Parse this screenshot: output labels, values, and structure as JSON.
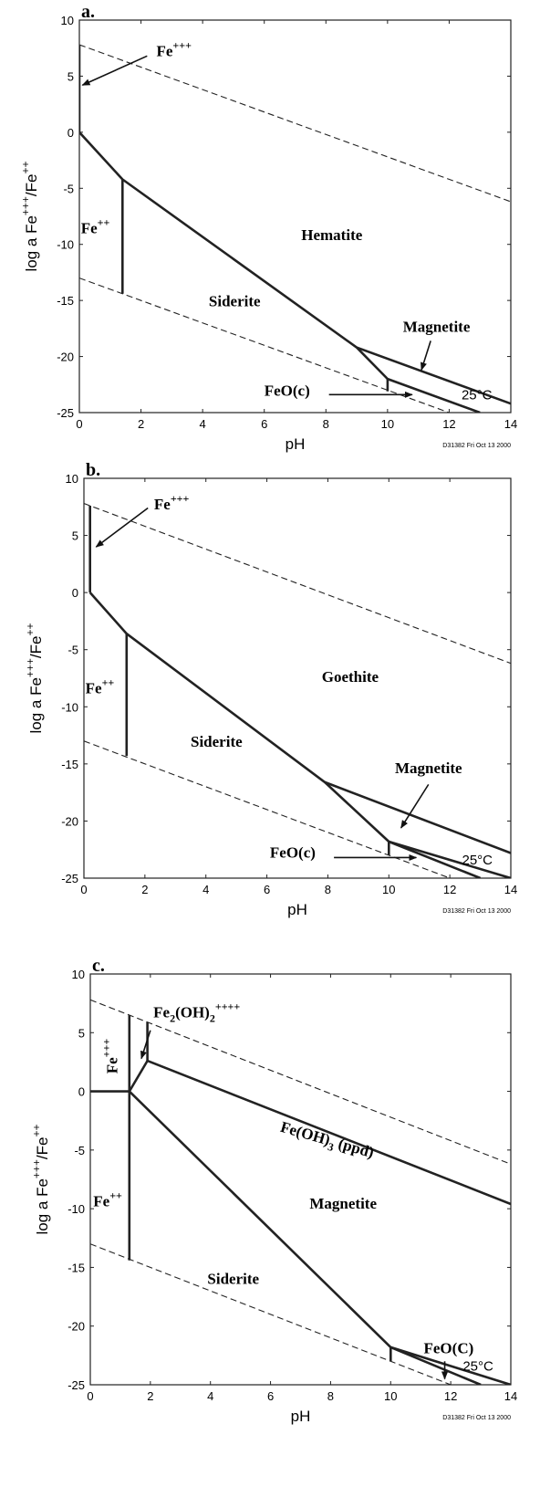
{
  "chart_data": [
    {
      "type": "line",
      "panel_label": "a.",
      "xlabel": "pH",
      "ylabel": "log a Fe+++/Fe++",
      "xlim": [
        0,
        14
      ],
      "ylim": [
        -25,
        10
      ],
      "xticks": [
        "0",
        "2",
        "4",
        "6",
        "8",
        "10",
        "12",
        "14"
      ],
      "yticks": [
        "10",
        "5",
        "0",
        "-5",
        "-10",
        "-15",
        "-20",
        "-25"
      ],
      "footer": "D31382 Fri Oct 13 2000",
      "temperature": "25°C",
      "series": [
        {
          "style": "dashed",
          "x": [
            0,
            14
          ],
          "y": [
            7.8,
            -6.2
          ]
        },
        {
          "style": "dashed",
          "x": [
            0,
            14
          ],
          "y": [
            -13,
            -27
          ]
        },
        {
          "style": "solid",
          "x": [
            0,
            0
          ],
          "y": [
            0,
            7.8
          ]
        },
        {
          "style": "solid",
          "x": [
            0,
            1.4,
            9,
            10,
            13
          ],
          "y": [
            0,
            -4.2,
            -19.2,
            -22,
            -25
          ]
        },
        {
          "style": "solid",
          "x": [
            1.4,
            1.4
          ],
          "y": [
            -4.2,
            -14.4
          ]
        },
        {
          "style": "solid",
          "x": [
            9,
            14
          ],
          "y": [
            -19.2,
            -24.2
          ]
        },
        {
          "style": "solid",
          "x": [
            10,
            10
          ],
          "y": [
            -22,
            -23.1
          ]
        }
      ],
      "labels": [
        {
          "base": "Fe",
          "sup": "+++",
          "x": 2.5,
          "y": 6.8
        },
        {
          "base": "Fe",
          "sup": "++",
          "x": 0.05,
          "y": -9
        },
        {
          "text": "Hematite",
          "x": 7.2,
          "y": -9.6
        },
        {
          "text": "Siderite",
          "x": 4.2,
          "y": -15.5
        },
        {
          "text": "Magnetite",
          "x": 10.5,
          "y": -17.8
        },
        {
          "text": "FeO(c)",
          "x": 6.0,
          "y": -23.5
        }
      ],
      "arrows": [
        {
          "x1": 2.2,
          "y1": 6.8,
          "x2": 0.1,
          "y2": 4.2
        },
        {
          "x1": 11.4,
          "y1": -18.6,
          "x2": 11.1,
          "y2": -21.2
        },
        {
          "x1": 8.1,
          "y1": -23.4,
          "x2": 10.8,
          "y2": -23.4
        }
      ]
    },
    {
      "type": "line",
      "panel_label": "b.",
      "xlabel": "pH",
      "ylabel": "log a Fe+++/Fe++",
      "xlim": [
        0,
        14
      ],
      "ylim": [
        -25,
        10
      ],
      "xticks": [
        "0",
        "2",
        "4",
        "6",
        "8",
        "10",
        "12",
        "14"
      ],
      "yticks": [
        "10",
        "5",
        "0",
        "-5",
        "-10",
        "-15",
        "-20",
        "-25"
      ],
      "footer": "D31382 Fri Oct 13 2000",
      "temperature": "25°C",
      "series": [
        {
          "style": "dashed",
          "x": [
            0,
            14
          ],
          "y": [
            7.8,
            -6.2
          ]
        },
        {
          "style": "dashed",
          "x": [
            0,
            14
          ],
          "y": [
            -13,
            -27
          ]
        },
        {
          "style": "solid",
          "x": [
            0.2,
            0.2
          ],
          "y": [
            0,
            7.6
          ]
        },
        {
          "style": "solid",
          "x": [
            0.2,
            1.4,
            7.9,
            10,
            13
          ],
          "y": [
            0,
            -3.6,
            -16.6,
            -21.8,
            -25
          ]
        },
        {
          "style": "solid",
          "x": [
            1.4,
            1.4
          ],
          "y": [
            -3.6,
            -14.3
          ]
        },
        {
          "style": "solid",
          "x": [
            7.9,
            14
          ],
          "y": [
            -16.6,
            -22.8
          ]
        },
        {
          "style": "solid",
          "x": [
            10,
            14
          ],
          "y": [
            -21.8,
            -25
          ]
        },
        {
          "style": "solid",
          "x": [
            10,
            10
          ],
          "y": [
            -21.8,
            -23
          ]
        }
      ],
      "labels": [
        {
          "base": "Fe",
          "sup": "+++",
          "x": 2.3,
          "y": 7.3
        },
        {
          "base": "Fe",
          "sup": "++",
          "x": 0.05,
          "y": -8.8
        },
        {
          "text": "Goethite",
          "x": 7.8,
          "y": -7.8
        },
        {
          "text": "Siderite",
          "x": 3.5,
          "y": -13.5
        },
        {
          "text": "Magnetite",
          "x": 10.2,
          "y": -15.8
        },
        {
          "text": "FeO(c)",
          "x": 6.1,
          "y": -23.2
        }
      ],
      "arrows": [
        {
          "x1": 2.1,
          "y1": 7.4,
          "x2": 0.4,
          "y2": 4.0
        },
        {
          "x1": 11.3,
          "y1": -16.8,
          "x2": 10.4,
          "y2": -20.6
        },
        {
          "x1": 8.2,
          "y1": -23.2,
          "x2": 10.9,
          "y2": -23.2
        }
      ]
    },
    {
      "type": "line",
      "panel_label": "c.",
      "xlabel": "pH",
      "ylabel": "log a Fe+++/Fe++",
      "xlim": [
        0,
        14
      ],
      "ylim": [
        -25,
        10
      ],
      "xticks": [
        "0",
        "2",
        "4",
        "6",
        "8",
        "10",
        "12",
        "14"
      ],
      "yticks": [
        "10",
        "5",
        "0",
        "-5",
        "-10",
        "-15",
        "-20",
        "-25"
      ],
      "footer": "D31382 Fri Oct 13 2000",
      "temperature": "25°C",
      "series": [
        {
          "style": "dashed",
          "x": [
            0,
            14
          ],
          "y": [
            7.8,
            -6.2
          ]
        },
        {
          "style": "dashed",
          "x": [
            0,
            14
          ],
          "y": [
            -13,
            -27
          ]
        },
        {
          "style": "solid",
          "x": [
            0,
            1.3
          ],
          "y": [
            0,
            0
          ]
        },
        {
          "style": "solid",
          "x": [
            1.3,
            1.3
          ],
          "y": [
            -14.4,
            6.5
          ]
        },
        {
          "style": "solid",
          "x": [
            1.3,
            1.9
          ],
          "y": [
            0,
            2.6
          ]
        },
        {
          "style": "solid",
          "x": [
            1.9,
            1.9
          ],
          "y": [
            2.6,
            5.9
          ]
        },
        {
          "style": "solid",
          "x": [
            1.9,
            14
          ],
          "y": [
            2.6,
            -9.6
          ]
        },
        {
          "style": "solid",
          "x": [
            1.3,
            10,
            13
          ],
          "y": [
            0,
            -21.8,
            -25
          ]
        },
        {
          "style": "solid",
          "x": [
            10,
            14
          ],
          "y": [
            -21.8,
            -25
          ]
        },
        {
          "style": "solid",
          "x": [
            10,
            10
          ],
          "y": [
            -21.8,
            -23
          ]
        }
      ],
      "labels": [
        {
          "base": "Fe",
          "sub": "2",
          "mid": "(OH)",
          "sub2": "2",
          "sup": "++++",
          "x": 2.1,
          "y": 6.3
        },
        {
          "base": "Fe",
          "sup": "+++",
          "x": 0.9,
          "y": 1.5,
          "rotate": -90
        },
        {
          "base": "Fe",
          "sup": "++",
          "x": 0.1,
          "y": -9.8
        },
        {
          "text": "Fe(OH)3 (ppd)",
          "x": 6.3,
          "y": -3.4,
          "rotate": 16
        },
        {
          "text": "Magnetite",
          "x": 7.3,
          "y": -10
        },
        {
          "text": "Siderite",
          "x": 3.9,
          "y": -16.4
        },
        {
          "text": "FeO(C)",
          "x": 11.1,
          "y": -22.3
        }
      ],
      "arrows": [
        {
          "x1": 2.0,
          "y1": 5.2,
          "x2": 1.7,
          "y2": 2.8
        },
        {
          "x1": 11.8,
          "y1": -23.0,
          "x2": 11.8,
          "y2": -24.5
        }
      ]
    }
  ]
}
